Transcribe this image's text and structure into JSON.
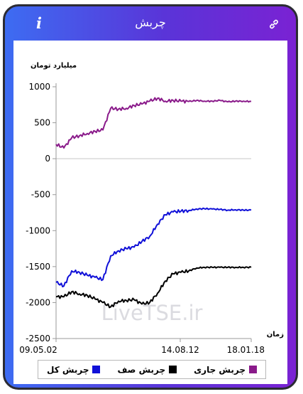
{
  "header": {
    "title": "چربش",
    "info_icon": "i"
  },
  "watermark": "LiveTSE.ir",
  "colors": {
    "jari": "#8a1a8a",
    "saf": "#000000",
    "kol": "#1010d8",
    "frame_left": "#3d6cf2",
    "frame_right": "#7a22d3"
  },
  "chart_data": {
    "type": "line",
    "ylabel": "میلیارد تومان",
    "xlabel": "زمان",
    "ylim": [
      -2500,
      1000
    ],
    "yticks": [
      1000,
      500,
      0,
      -500,
      -1000,
      -1500,
      -2000,
      -2500
    ],
    "xticks": [
      "09.05.02",
      "14.08.12",
      "18.01.18"
    ],
    "x": [
      0,
      4,
      8,
      12,
      16,
      20,
      24,
      28,
      32,
      36,
      40,
      44,
      48,
      52,
      56,
      60,
      64,
      68,
      72,
      76,
      80,
      84,
      88,
      92,
      96,
      100
    ],
    "series": [
      {
        "name": "چربش جاری",
        "color": "#8a1a8a",
        "values": [
          200,
          150,
          290,
          320,
          350,
          380,
          400,
          700,
          690,
          700,
          740,
          760,
          800,
          840,
          800,
          810,
          800,
          795,
          810,
          800,
          800,
          810,
          790,
          800,
          800,
          795
        ]
      },
      {
        "name": "چربش صف",
        "color": "#000000",
        "values": [
          -1920,
          -1920,
          -1850,
          -1880,
          -1900,
          -1950,
          -2000,
          -2060,
          -1980,
          -1970,
          -1960,
          -2020,
          -2000,
          -1870,
          -1700,
          -1600,
          -1580,
          -1560,
          -1520,
          -1510,
          -1510,
          -1510,
          -1510,
          -1510,
          -1510,
          -1510
        ]
      },
      {
        "name": "چربش کل",
        "color": "#1010d8",
        "values": [
          -1720,
          -1770,
          -1560,
          -1580,
          -1620,
          -1650,
          -1680,
          -1350,
          -1280,
          -1250,
          -1230,
          -1150,
          -1080,
          -910,
          -780,
          -740,
          -730,
          -720,
          -700,
          -695,
          -700,
          -705,
          -715,
          -710,
          -715,
          -715
        ]
      }
    ],
    "legend": {
      "position": "bottom",
      "items": [
        "چربش جاری",
        "چربش صف",
        "چربش کل"
      ]
    }
  }
}
